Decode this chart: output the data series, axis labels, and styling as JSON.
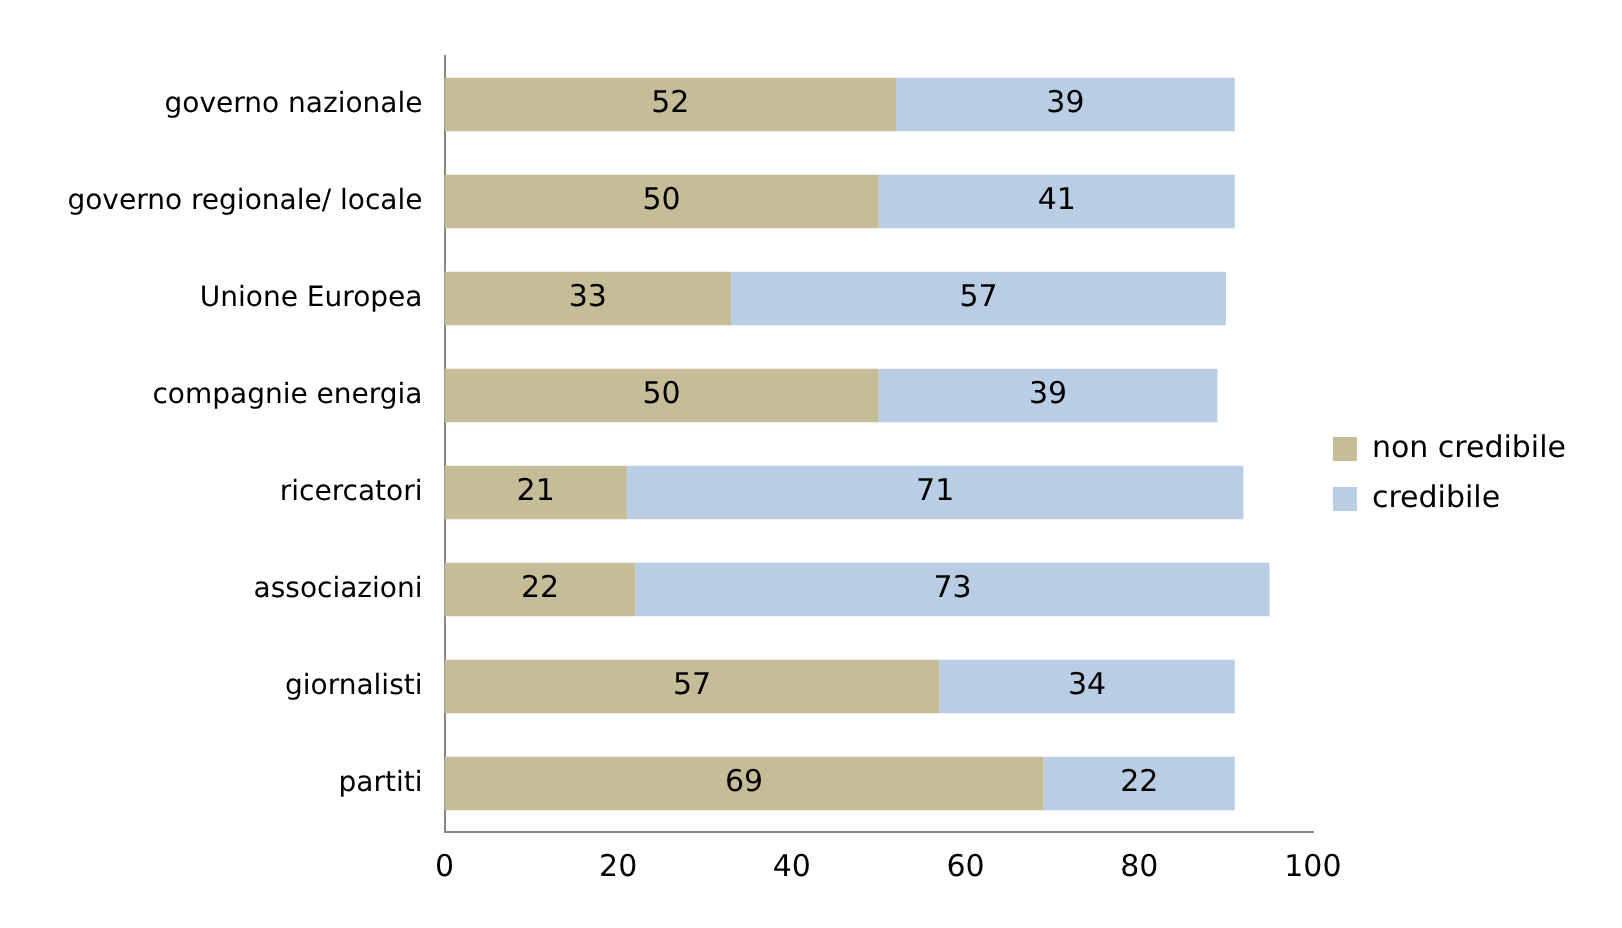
{
  "chart_data": {
    "type": "bar",
    "orientation": "horizontal",
    "stacked": true,
    "categories": [
      "governo nazionale",
      "governo regionale/ locale",
      "Unione Europea",
      "compagnie energia",
      "ricercatori",
      "associazioni",
      "giornalisti",
      "partiti"
    ],
    "series": [
      {
        "name": "non credibile",
        "color": "#c4bd97",
        "values": [
          52,
          50,
          33,
          50,
          21,
          22,
          57,
          69
        ]
      },
      {
        "name": "credibile",
        "color": "#b9cde5",
        "values": [
          39,
          41,
          57,
          39,
          71,
          73,
          34,
          22
        ]
      }
    ],
    "xlim": [
      0,
      100
    ],
    "xticks": [
      0,
      20,
      40,
      60,
      80,
      100
    ],
    "grid": false,
    "legend": "right",
    "data_labels": true
  }
}
